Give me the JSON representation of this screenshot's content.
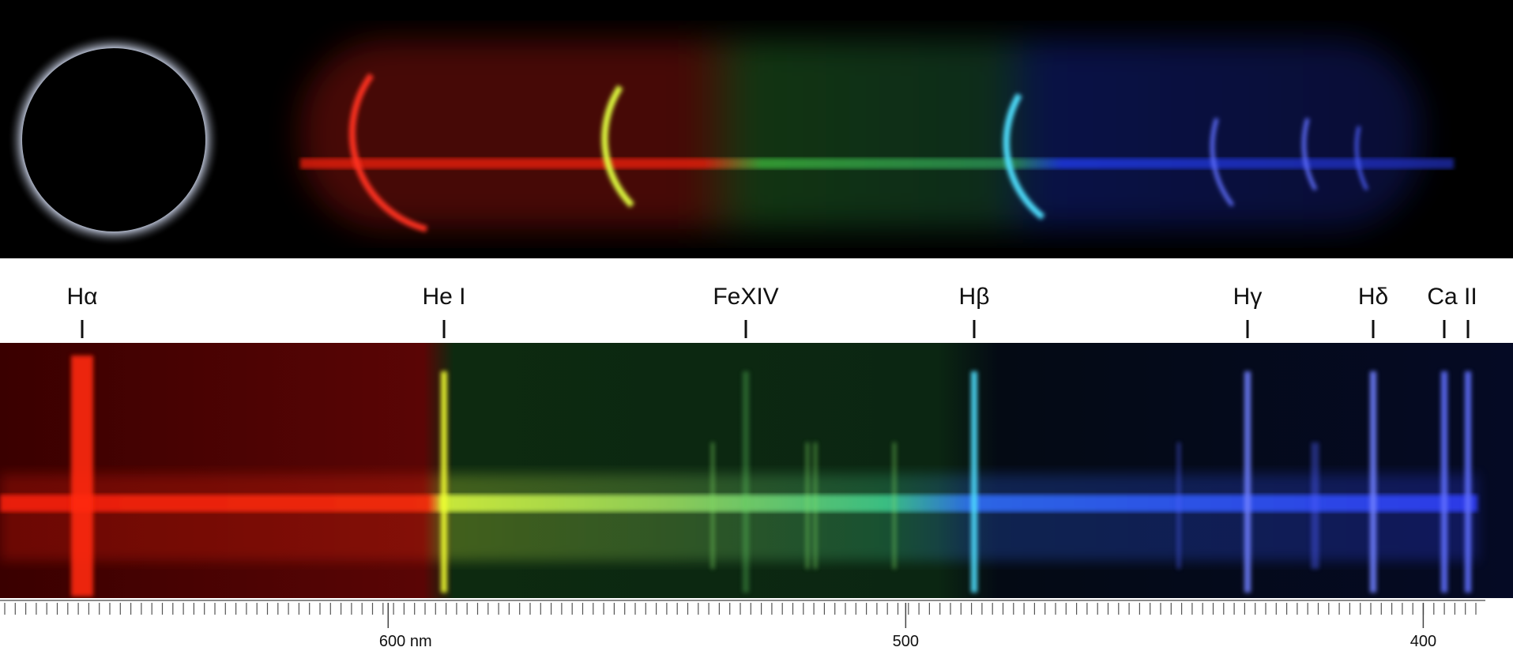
{
  "line_labels": [
    "Hα",
    "He I",
    "FeXIV",
    "Hβ",
    "Hγ",
    "Hδ",
    "Ca II"
  ],
  "scale": {
    "xlim": [
      675,
      388
    ],
    "xticks": [
      {
        "value": 600,
        "label": "600 nm"
      },
      500,
      400
    ]
  }
}
